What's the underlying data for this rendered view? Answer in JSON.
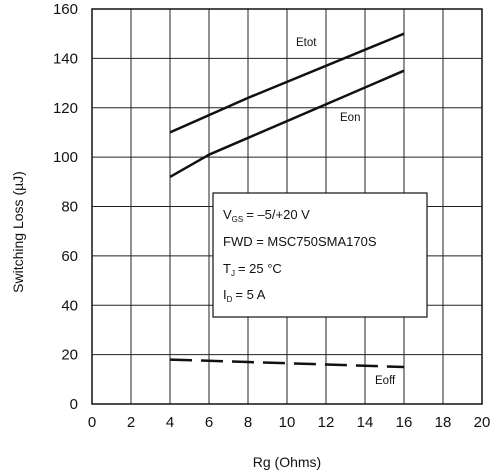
{
  "chart_data": {
    "type": "line",
    "xlabel": "Rg (Ohms)",
    "ylabel": "Switching Loss (µJ)",
    "xlim": [
      0,
      20
    ],
    "ylim": [
      0,
      160
    ],
    "xticks": [
      0,
      2,
      4,
      6,
      8,
      10,
      12,
      14,
      16,
      18,
      20
    ],
    "yticks": [
      0,
      20,
      40,
      60,
      80,
      100,
      120,
      140,
      160
    ],
    "grid": true,
    "series": [
      {
        "name": "Etot",
        "style": "solid",
        "x": [
          4,
          8,
          16
        ],
        "y": [
          110,
          124,
          150
        ]
      },
      {
        "name": "Eon",
        "style": "solid",
        "x": [
          4,
          6,
          16
        ],
        "y": [
          92,
          101,
          135
        ]
      },
      {
        "name": "Eoff",
        "style": "dashed",
        "x": [
          4,
          8,
          12,
          16
        ],
        "y": [
          18,
          17,
          16,
          15
        ]
      }
    ],
    "conditions": {
      "vgs": {
        "sym": "V",
        "sub": "GS",
        "value": "= –5/+20 V"
      },
      "fwd": "FWD = MSC750SMA170S",
      "tj": {
        "sym": "T",
        "sub": "J",
        "value": "= 25 °C"
      },
      "id": {
        "sym": "I",
        "sub": "D",
        "value": "= 5 A"
      }
    }
  }
}
